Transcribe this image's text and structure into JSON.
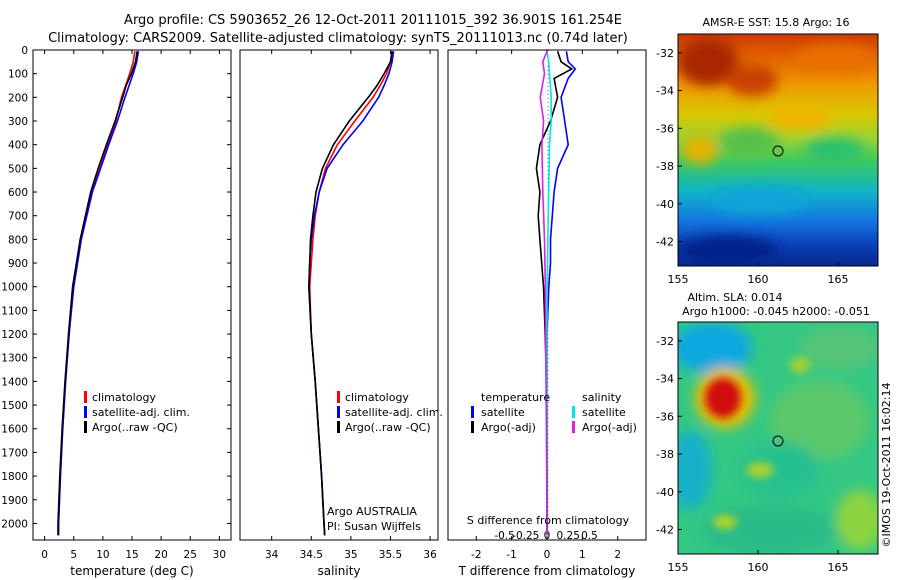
{
  "header": {
    "line1": "Argo profile: CS 5903652_26 12-Oct-2011 20111015_392 36.901S 161.254E",
    "line2": "Climatology: CARS2009. Satellite-adjusted climatology: synTS_20111013.nc (0.74d later)"
  },
  "colors": {
    "climatology": "#ff0000",
    "satellite": "#0000ff",
    "argo": "#000000",
    "sat_salinity": "#00e5e5",
    "argo_salinity": "#e020e0"
  },
  "footer": {
    "imos_stamp": "©IMOS 19-Oct-2011 16:02:14"
  },
  "chart_data": [
    {
      "type": "line",
      "xlabel": "temperature (deg C)",
      "ylabel": "",
      "xlim": [
        -2,
        32
      ],
      "ylim": [
        2070,
        0
      ],
      "xticks": [
        "0",
        "5",
        "10",
        "15",
        "20",
        "25",
        "30"
      ],
      "yticks": [
        "0",
        "100",
        "200",
        "300",
        "400",
        "500",
        "600",
        "700",
        "800",
        "900",
        "1000",
        "1100",
        "1200",
        "1300",
        "1400",
        "1500",
        "1600",
        "1700",
        "1800",
        "1900",
        "2000"
      ],
      "legend": [
        "climatology",
        "satellite-adj. clim.",
        "Argo(..raw -QC)"
      ],
      "series": [
        {
          "name": "climatology",
          "depth": [
            5,
            50,
            100,
            150,
            200,
            300,
            400,
            500,
            600,
            800,
            1000,
            1200,
            1400,
            1600,
            1800,
            2000,
            2050
          ],
          "values": [
            15.5,
            15.2,
            14.6,
            13.9,
            13.2,
            12.2,
            10.8,
            9.5,
            8.1,
            6.2,
            4.9,
            4.2,
            3.6,
            3.1,
            2.7,
            2.4,
            2.4
          ]
        },
        {
          "name": "satellite-adj. clim.",
          "depth": [
            5,
            50,
            100,
            150,
            200,
            300,
            400,
            500,
            600,
            800,
            1000,
            1200,
            1400,
            1600,
            1800,
            2000,
            2050
          ],
          "values": [
            16.1,
            15.8,
            15.2,
            14.5,
            13.8,
            12.5,
            11.0,
            9.6,
            8.2,
            6.3,
            5.0,
            4.2,
            3.6,
            3.1,
            2.7,
            2.4,
            2.4
          ]
        },
        {
          "name": "Argo(..raw -QC)",
          "depth": [
            5,
            50,
            100,
            150,
            200,
            300,
            400,
            500,
            600,
            800,
            1000,
            1200,
            1400,
            1600,
            1800,
            2000,
            2050
          ],
          "values": [
            15.9,
            15.6,
            14.9,
            14.0,
            13.4,
            12.1,
            10.6,
            9.2,
            7.9,
            6.1,
            4.8,
            4.1,
            3.5,
            3.0,
            2.6,
            2.3,
            2.3
          ]
        }
      ]
    },
    {
      "type": "line",
      "xlabel": "salinity",
      "ylabel": "",
      "xlim": [
        33.6,
        36.1
      ],
      "ylim": [
        2070,
        0
      ],
      "xticks": [
        "34",
        "34.5",
        "35",
        "35.5",
        "36"
      ],
      "legend": [
        "climatology",
        "satellite-adj. clim.",
        "Argo(..raw -QC)"
      ],
      "annotation": [
        "Argo AUSTRALIA",
        "PI: Susan Wijffels"
      ],
      "series": [
        {
          "name": "climatology",
          "depth": [
            5,
            50,
            100,
            150,
            200,
            300,
            400,
            500,
            600,
            700,
            800,
            900,
            1000,
            1200,
            1400,
            1600,
            1800,
            2000,
            2050
          ],
          "values": [
            35.52,
            35.5,
            35.45,
            35.37,
            35.28,
            35.05,
            34.83,
            34.68,
            34.6,
            34.55,
            34.52,
            34.5,
            34.48,
            34.5,
            34.55,
            34.59,
            34.63,
            34.66,
            34.67
          ]
        },
        {
          "name": "satellite-adj. clim.",
          "depth": [
            5,
            50,
            100,
            150,
            200,
            300,
            400,
            500,
            600,
            700,
            800,
            900,
            1000,
            1200,
            1400,
            1600,
            1800,
            2000,
            2050
          ],
          "values": [
            35.54,
            35.52,
            35.48,
            35.42,
            35.35,
            35.15,
            34.9,
            34.7,
            34.6,
            34.54,
            34.5,
            34.48,
            34.47,
            34.5,
            34.55,
            34.59,
            34.63,
            34.66,
            34.67
          ]
        },
        {
          "name": "Argo(..raw -QC)",
          "depth": [
            5,
            50,
            100,
            150,
            200,
            300,
            400,
            500,
            600,
            700,
            800,
            900,
            1000,
            1200,
            1400,
            1600,
            1800,
            2000,
            2050
          ],
          "values": [
            35.52,
            35.5,
            35.42,
            35.33,
            35.22,
            34.98,
            34.78,
            34.64,
            34.56,
            34.52,
            34.49,
            34.48,
            34.47,
            34.5,
            34.55,
            34.59,
            34.63,
            34.66,
            34.67
          ]
        }
      ]
    },
    {
      "type": "line",
      "xlabel": "T difference from climatology",
      "xlabel_top": "S difference from climatology",
      "xlim": [
        -2.8,
        2.8
      ],
      "ylim": [
        2070,
        0
      ],
      "xticks": [
        "-2",
        "-1",
        "0",
        "1",
        "2"
      ],
      "xticks_top": [
        "-0.5",
        "-0.25",
        "0",
        "0.25",
        "0.5"
      ],
      "legend_temperature": {
        "title": "temperature",
        "items": [
          "satellite",
          "Argo(-adj)"
        ]
      },
      "legend_salinity": {
        "title": "salinity",
        "items": [
          "satellite",
          "Argo(-adj)"
        ]
      },
      "series": [
        {
          "name": "satellite",
          "depth": [
            5,
            50,
            80,
            120,
            200,
            300,
            400,
            500,
            600,
            700,
            800,
            900,
            1000,
            1200,
            1500,
            2000,
            2050
          ],
          "values": [
            0.55,
            0.6,
            0.8,
            0.6,
            0.4,
            0.5,
            0.6,
            0.3,
            0.2,
            0.15,
            0.1,
            0.1,
            0.05,
            0.0,
            0.0,
            0.0,
            0.0
          ]
        },
        {
          "name": "Argo(-adj)",
          "depth": [
            5,
            50,
            80,
            120,
            200,
            300,
            400,
            500,
            600,
            700,
            800,
            900,
            1000,
            1200,
            1500,
            2000,
            2050
          ],
          "values": [
            0.3,
            0.4,
            0.7,
            0.2,
            0.3,
            0.1,
            -0.2,
            -0.3,
            -0.2,
            -0.25,
            -0.2,
            -0.15,
            -0.1,
            -0.05,
            0.0,
            0.0,
            0.0
          ]
        },
        {
          "name": "satellite",
          "depth": [
            5,
            50,
            100,
            200,
            300,
            400,
            600,
            800,
            1000,
            1500,
            2000,
            2050
          ],
          "values": [
            0.0,
            0.02,
            0.03,
            0.05,
            0.05,
            0.03,
            0.02,
            0.01,
            0.0,
            0.0,
            0.0,
            0.0
          ]
        },
        {
          "name": "Argo(-adj)",
          "depth": [
            5,
            50,
            100,
            200,
            300,
            400,
            600,
            800,
            1000,
            1500,
            2000,
            2050
          ],
          "values": [
            0.0,
            -0.05,
            -0.03,
            -0.08,
            -0.04,
            -0.06,
            -0.05,
            -0.03,
            -0.02,
            -0.01,
            0.0,
            0.0
          ]
        }
      ]
    },
    {
      "type": "heatmap",
      "title": "AMSR-E SST: 15.8 Argo: 16",
      "xlim": [
        155,
        167.5
      ],
      "ylim": [
        -43.3,
        -31
      ],
      "xticks": [
        "155",
        "160",
        "165"
      ],
      "yticks": [
        "-32",
        "-34",
        "-36",
        "-38",
        "-40",
        "-42"
      ],
      "argo_position": {
        "lon": 161.254,
        "lat": -36.901
      }
    },
    {
      "type": "heatmap",
      "title": "Altim. SLA: 0.014",
      "subtitle": "Argo h1000: -0.045 h2000: -0.051",
      "xlim": [
        155,
        167.5
      ],
      "ylim": [
        -43.3,
        -31
      ],
      "xticks": [
        "155",
        "160",
        "165"
      ],
      "yticks": [
        "-32",
        "-34",
        "-36",
        "-38",
        "-40",
        "-42"
      ],
      "argo_position": {
        "lon": 161.254,
        "lat": -36.901
      }
    }
  ]
}
